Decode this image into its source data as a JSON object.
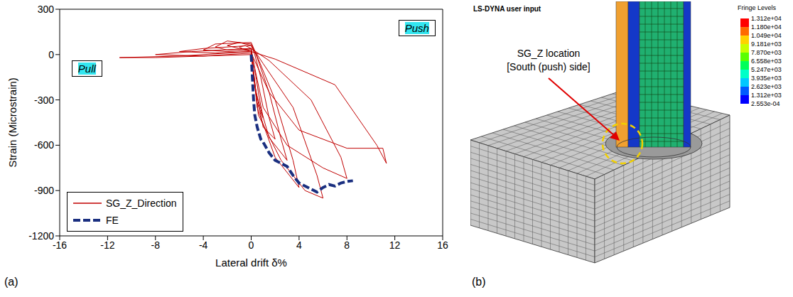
{
  "chart_data": {
    "type": "line",
    "x_label": "Lateral drift δ%",
    "y_label": "Strain (Microstrain)",
    "xlim": [
      -16,
      16
    ],
    "xticks": [
      -16,
      -12,
      -8,
      -4,
      0,
      4,
      8,
      12,
      16
    ],
    "ylim": [
      -1200,
      300
    ],
    "yticks": [
      -1200,
      -900,
      -600,
      -300,
      0,
      300
    ],
    "grid": false,
    "legend": "lower left",
    "annotations": [
      "Pull",
      "Push"
    ],
    "series": [
      {
        "name": "SG_Z_Direction",
        "color": "#c00000",
        "line_style": "solid",
        "x": [
          0,
          0.2,
          0.5,
          1,
          0.6,
          0.2,
          0,
          -0.5,
          -1,
          -0.5,
          0,
          0.3,
          1,
          2,
          1.5,
          0.8,
          0.3,
          0,
          -1,
          -2,
          -1,
          0,
          0.4,
          1.5,
          3,
          2.5,
          1.5,
          0.5,
          0,
          -2,
          -3,
          -2,
          0,
          0.5,
          2,
          4,
          3.5,
          2,
          0.6,
          0,
          -3,
          -4,
          -2,
          0,
          0.6,
          2.5,
          4.5,
          6,
          5.5,
          3.5,
          1,
          0,
          -4,
          -6,
          -3,
          0,
          1,
          3,
          6,
          8,
          7.5,
          5,
          1.5,
          0,
          -5,
          -8,
          -4,
          0,
          1.5,
          4,
          8,
          11,
          11.3,
          10.5,
          7,
          2,
          0,
          -6,
          -11,
          -8,
          0
        ],
        "values": [
          0,
          -150,
          -320,
          -420,
          -250,
          -50,
          40,
          60,
          50,
          30,
          20,
          -200,
          -480,
          -560,
          -420,
          -150,
          0,
          60,
          80,
          60,
          40,
          30,
          -250,
          -550,
          -700,
          -560,
          -250,
          -20,
          70,
          90,
          50,
          30,
          40,
          -350,
          -680,
          -880,
          -700,
          -300,
          -30,
          80,
          70,
          30,
          20,
          30,
          -400,
          -700,
          -900,
          -950,
          -800,
          -350,
          -60,
          60,
          40,
          20,
          10,
          20,
          -350,
          -600,
          -750,
          -820,
          -680,
          -300,
          -40,
          40,
          20,
          0,
          -10,
          10,
          -250,
          -500,
          -620,
          -620,
          -720,
          -600,
          -200,
          -30,
          20,
          -10,
          -20,
          -20,
          0
        ]
      },
      {
        "name": "FE",
        "color": "#1a2f80",
        "line_style": "dashed",
        "x": [
          0,
          0.1,
          0.2,
          0.3,
          0.5,
          0.8,
          1,
          1.5,
          2,
          2.5,
          3,
          3.5,
          4,
          5,
          5.5,
          6,
          6.5,
          7,
          7.5,
          8,
          8.5
        ],
        "values": [
          0,
          -150,
          -300,
          -400,
          -480,
          -560,
          -580,
          -650,
          -700,
          -720,
          -740,
          -800,
          -850,
          -890,
          -910,
          -880,
          -860,
          -870,
          -850,
          -840,
          -835
        ]
      }
    ]
  },
  "panel_b": {
    "header": "LS-DYNA user input",
    "callout": [
      "SG_Z location",
      "[South (push) side]"
    ],
    "colorbar": {
      "title": "Fringe Levels",
      "ticks": [
        {
          "value": 13120,
          "label": "1.312e+04"
        },
        {
          "value": 11800,
          "label": "1.180e+04"
        },
        {
          "value": 10490,
          "label": "1.049e+04"
        },
        {
          "value": 9181,
          "label": "9.181e+03"
        },
        {
          "value": 7870,
          "label": "7.870e+03"
        },
        {
          "value": 6558,
          "label": "6.558e+03"
        },
        {
          "value": 5247,
          "label": "5.247e+03"
        },
        {
          "value": 3935,
          "label": "3.935e+03"
        },
        {
          "value": 2623,
          "label": "2.623e+03"
        },
        {
          "value": 1312,
          "label": "1.312e+03"
        },
        {
          "value": 0.0002553,
          "label": "2.553e-04"
        }
      ]
    }
  },
  "panel_labels": [
    "(a)",
    "(b)"
  ]
}
